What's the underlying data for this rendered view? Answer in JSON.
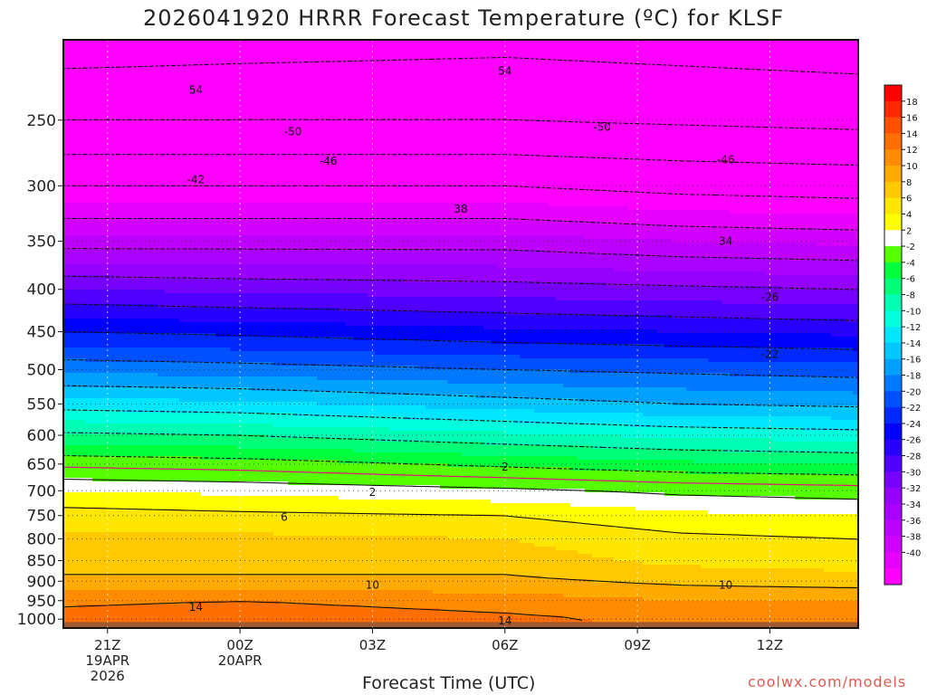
{
  "title": "2026041920 HRRR Forecast Temperature (ºC) for KLSF",
  "xlabel": "Forecast Time (UTC)",
  "credit": "coolwx.com/models",
  "chart_data": {
    "type": "heatmap",
    "title": "2026041920 HRRR Forecast Temperature (ºC) for KLSF",
    "xlabel": "Forecast Time (UTC)",
    "ylabel": "",
    "y_axis": {
      "scale": "log-pressure",
      "reversed": true,
      "range_hpa": [
        200,
        1025
      ],
      "ticks": [
        250,
        300,
        350,
        400,
        450,
        500,
        550,
        600,
        650,
        700,
        750,
        800,
        850,
        900,
        950,
        1000
      ]
    },
    "x_axis": {
      "range_hours": [
        20,
        38
      ],
      "ticks": [
        {
          "hour": 21,
          "label": [
            "21Z",
            "19APR",
            "2026"
          ]
        },
        {
          "hour": 24,
          "label": [
            "00Z",
            "20APR"
          ]
        },
        {
          "hour": 27,
          "label": [
            "03Z"
          ]
        },
        {
          "hour": 30,
          "label": [
            "06Z"
          ]
        },
        {
          "hour": 33,
          "label": [
            "09Z"
          ]
        },
        {
          "hour": 36,
          "label": [
            "12Z"
          ]
        }
      ]
    },
    "grid": true,
    "colorbar": {
      "placement": "right",
      "levels": [
        -42,
        -40,
        -38,
        -36,
        -34,
        -32,
        -30,
        -28,
        -26,
        -24,
        -22,
        -20,
        -18,
        -16,
        -14,
        -12,
        -10,
        -8,
        -6,
        -4,
        -2,
        2,
        4,
        6,
        8,
        10,
        12,
        14,
        16,
        18,
        20
      ],
      "labels": [
        "18",
        "16",
        "14",
        "12",
        "10",
        "8",
        "6",
        "4",
        "2",
        "-2",
        "-4",
        "-6",
        "-8",
        "-10",
        "-12",
        "-14",
        "-16",
        "-18",
        "-20",
        "-22",
        "-24",
        "-26",
        "-28",
        "-30",
        "-32",
        "-34",
        "-36",
        "-38",
        "-40"
      ],
      "colors": [
        "#ff00ff",
        "#e600ff",
        "#d200ff",
        "#be00ff",
        "#aa00ff",
        "#9600ff",
        "#7800ff",
        "#5000ff",
        "#2800ff",
        "#0000ff",
        "#0028ff",
        "#0050ff",
        "#0078ff",
        "#00a0ff",
        "#00c8ff",
        "#00e6ff",
        "#00ffdc",
        "#00ffb4",
        "#00ff78",
        "#00ff3c",
        "#55ff00",
        "#ffffff",
        "#ffff00",
        "#ffe600",
        "#ffc800",
        "#ffaa00",
        "#ff8c00",
        "#ff6e00",
        "#ff5000",
        "#ff2800",
        "#ff0000"
      ]
    },
    "profiles": [
      {
        "hour": 20,
        "levels_hpa": [
          200,
          250,
          300,
          350,
          400,
          450,
          500,
          550,
          600,
          650,
          700,
          750,
          800,
          850,
          900,
          950,
          1000
        ],
        "temps_c": [
          -56,
          -50,
          -42,
          -35,
          -28,
          -22,
          -16.5,
          -11,
          -5.5,
          -0.5,
          4,
          7,
          8.5,
          9,
          10.5,
          13.5,
          15
        ]
      },
      {
        "hour": 24,
        "levels_hpa": [
          200,
          250,
          300,
          350,
          400,
          450,
          500,
          550,
          600,
          650,
          700,
          750,
          800,
          850,
          900,
          950,
          1000
        ],
        "temps_c": [
          -55.5,
          -50,
          -42,
          -35,
          -28.5,
          -22.5,
          -17,
          -11.5,
          -6,
          -1,
          3.5,
          6.5,
          8.5,
          9,
          10.5,
          14,
          15.5
        ]
      },
      {
        "hour": 30,
        "levels_hpa": [
          200,
          250,
          300,
          350,
          400,
          450,
          500,
          550,
          600,
          650,
          700,
          750,
          800,
          850,
          900,
          950,
          1000
        ],
        "temps_c": [
          -55,
          -50,
          -42,
          -35,
          -29,
          -23.5,
          -18,
          -13,
          -7.5,
          -2.5,
          2.5,
          6,
          8,
          9,
          10.5,
          13,
          14.5
        ]
      },
      {
        "hour": 34,
        "levels_hpa": [
          200,
          250,
          300,
          350,
          400,
          450,
          500,
          550,
          600,
          650,
          700,
          750,
          800,
          850,
          900,
          950,
          1000
        ],
        "temps_c": [
          -55.5,
          -50.5,
          -43,
          -36,
          -29.5,
          -24,
          -18.5,
          -14,
          -8.5,
          -3.5,
          1.5,
          4.5,
          6.5,
          7.5,
          9.5,
          12,
          13.5
        ]
      },
      {
        "hour": 38,
        "levels_hpa": [
          200,
          250,
          300,
          350,
          400,
          450,
          500,
          550,
          600,
          650,
          700,
          750,
          800,
          850,
          900,
          950,
          1000
        ],
        "temps_c": [
          -56,
          -51,
          -43.5,
          -36.5,
          -30,
          -24.5,
          -19,
          -14.5,
          -9,
          -4,
          1,
          4,
          6,
          7,
          9,
          12,
          14
        ]
      }
    ],
    "contour_labels": [
      {
        "hour": 23,
        "p": 230,
        "text": "54"
      },
      {
        "hour": 30,
        "p": 218,
        "text": "54"
      },
      {
        "hour": 25.2,
        "p": 258,
        "text": "-50"
      },
      {
        "hour": 32.2,
        "p": 255,
        "text": "-50"
      },
      {
        "hour": 26,
        "p": 280,
        "text": "-46"
      },
      {
        "hour": 35,
        "p": 279,
        "text": "-46"
      },
      {
        "hour": 23,
        "p": 295,
        "text": "-42"
      },
      {
        "hour": 29,
        "p": 320,
        "text": "38"
      },
      {
        "hour": 35,
        "p": 350,
        "text": "34"
      },
      {
        "hour": 36,
        "p": 409,
        "text": "-26"
      },
      {
        "hour": 36,
        "p": 479,
        "text": "-22"
      },
      {
        "hour": 30,
        "p": 655,
        "text": "2"
      },
      {
        "hour": 27,
        "p": 703,
        "text": "2"
      },
      {
        "hour": 25,
        "p": 753,
        "text": "6"
      },
      {
        "hour": 27,
        "p": 910,
        "text": "10"
      },
      {
        "hour": 35,
        "p": 910,
        "text": "10"
      },
      {
        "hour": 23,
        "p": 967,
        "text": "14"
      },
      {
        "hour": 30,
        "p": 1005,
        "text": "14"
      }
    ]
  }
}
